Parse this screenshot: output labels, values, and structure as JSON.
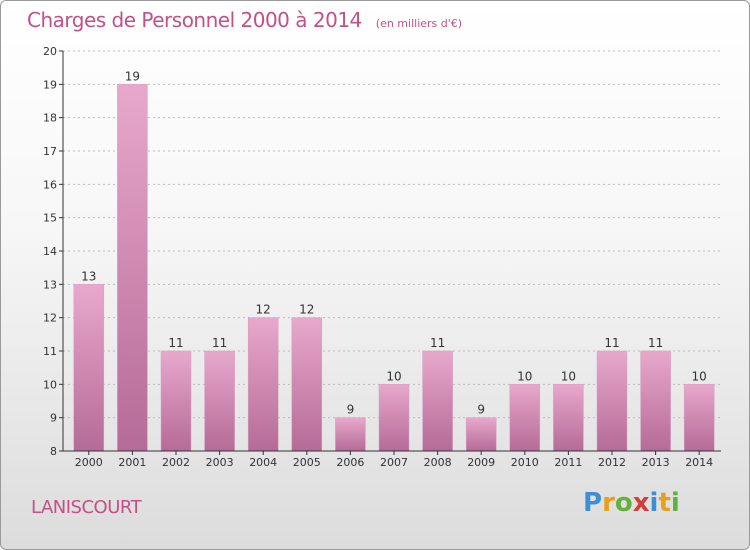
{
  "header": {
    "title": "Charges de Personnel 2000 à 2014",
    "subtitle": "(en milliers d'€)"
  },
  "footer": {
    "place": "LANISCOURT",
    "logo": "Proxiti",
    "logo_letters": [
      {
        "ch": "P",
        "color": "#3c8fd6"
      },
      {
        "ch": "r",
        "color": "#e8a018"
      },
      {
        "ch": "o",
        "color": "#62b13a"
      },
      {
        "ch": "x",
        "color": "#d63c3c"
      },
      {
        "ch": "i",
        "color": "#3c8fd6"
      },
      {
        "ch": "t",
        "color": "#e8a018"
      },
      {
        "ch": "i",
        "color": "#62b13a"
      }
    ]
  },
  "colors": {
    "accent": "#c64f86",
    "bar_top": "#e8a8cc",
    "bar_bottom": "#b56b97",
    "axis": "#333333",
    "grid": "#bbbbbb"
  },
  "chart_data": {
    "type": "bar",
    "title": "Charges de Personnel 2000 à 2014",
    "subtitle": "(en milliers d'€)",
    "categories": [
      "2000",
      "2001",
      "2002",
      "2003",
      "2004",
      "2005",
      "2006",
      "2007",
      "2008",
      "2009",
      "2010",
      "2011",
      "2012",
      "2013",
      "2014"
    ],
    "values": [
      13,
      19,
      11,
      11,
      12,
      12,
      9,
      10,
      11,
      9,
      10,
      10,
      11,
      11,
      10
    ],
    "ylim": [
      8,
      20
    ],
    "yticks": [
      8,
      9,
      10,
      11,
      12,
      13,
      14,
      15,
      16,
      17,
      18,
      19,
      20
    ],
    "grid": true,
    "data_labels": true
  }
}
